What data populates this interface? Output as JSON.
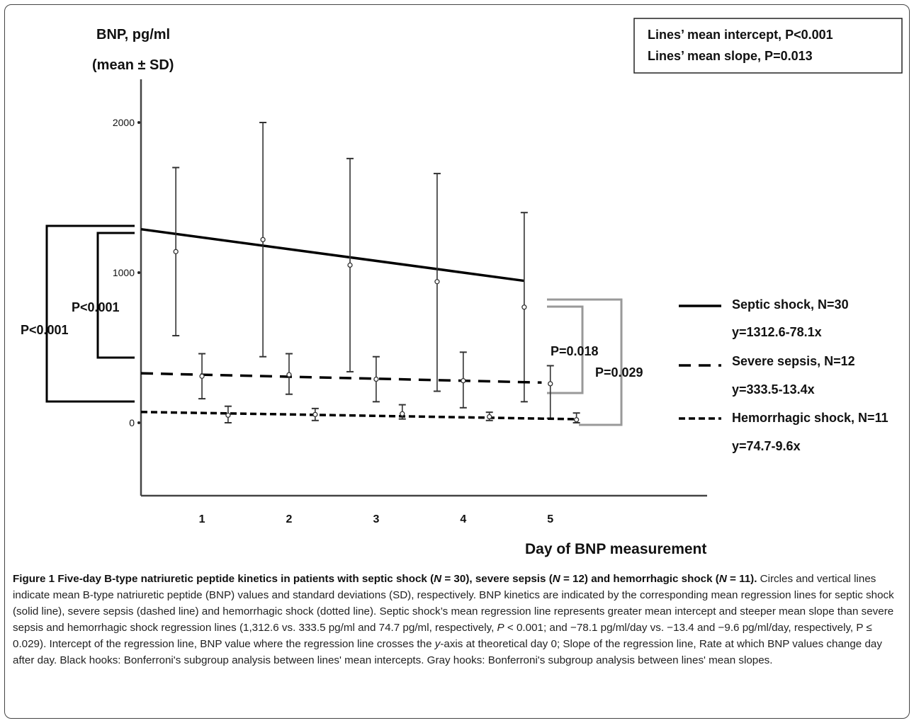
{
  "chart_data": {
    "type": "line",
    "ylabel_line1": "BNP, pg/ml",
    "ylabel_line2": "(mean ± SD)",
    "xlabel": "Day of BNP measurement",
    "x_ticks": [
      "1",
      "2",
      "3",
      "4",
      "5"
    ],
    "y_ticks": [
      "0",
      "1000",
      "2000"
    ],
    "ylim": [
      -500,
      2200
    ],
    "xlim": [
      0.3,
      6.8
    ],
    "stats_box": [
      "Lines’ mean intercept, P<0.001",
      "Lines’ mean slope, P=0.013"
    ],
    "series": [
      {
        "name": "Septic shock, N=30",
        "equation": "y=1312.6-78.1x",
        "line_style": "solid",
        "intercept": 1312.6,
        "slope": -78.1,
        "line_x_range": [
          0.3,
          4.7
        ],
        "points": [
          {
            "x": 0.7,
            "mean": 1140,
            "lower": 580,
            "upper": 1700
          },
          {
            "x": 1.7,
            "mean": 1220,
            "lower": 440,
            "upper": 2000
          },
          {
            "x": 2.7,
            "mean": 1050,
            "lower": 340,
            "upper": 1760
          },
          {
            "x": 3.7,
            "mean": 940,
            "lower": 210,
            "upper": 1660
          },
          {
            "x": 4.7,
            "mean": 770,
            "lower": 140,
            "upper": 1400
          }
        ]
      },
      {
        "name": "Severe sepsis, N=12",
        "equation": "y=333.5-13.4x",
        "line_style": "dashed",
        "intercept": 333.5,
        "slope": -13.4,
        "line_x_range": [
          0.3,
          4.9
        ],
        "points": [
          {
            "x": 1.0,
            "mean": 310,
            "lower": 160,
            "upper": 460
          },
          {
            "x": 2.0,
            "mean": 320,
            "lower": 190,
            "upper": 460
          },
          {
            "x": 3.0,
            "mean": 290,
            "lower": 140,
            "upper": 440
          },
          {
            "x": 4.0,
            "mean": 280,
            "lower": 100,
            "upper": 470
          },
          {
            "x": 5.0,
            "mean": 260,
            "lower": 30,
            "upper": 380
          }
        ]
      },
      {
        "name": "Hemorrhagic shock, N=11",
        "equation": "y=74.7-9.6x",
        "line_style": "dotted",
        "intercept": 74.7,
        "slope": -9.6,
        "line_x_range": [
          0.3,
          5.3
        ],
        "points": [
          {
            "x": 1.3,
            "mean": 50,
            "lower": 0,
            "upper": 110
          },
          {
            "x": 2.3,
            "mean": 55,
            "lower": 15,
            "upper": 95
          },
          {
            "x": 3.3,
            "mean": 60,
            "lower": 25,
            "upper": 120
          },
          {
            "x": 4.3,
            "mean": 40,
            "lower": 15,
            "upper": 70
          },
          {
            "x": 5.3,
            "mean": 20,
            "lower": 0,
            "upper": 65
          }
        ]
      }
    ],
    "comparisons": [
      {
        "label": "P<0.001",
        "type": "intercept",
        "between": [
          "Septic shock",
          "Hemorrhagic shock"
        ],
        "color": "#000000"
      },
      {
        "label": "P<0.001",
        "type": "intercept",
        "between": [
          "Septic shock",
          "Severe sepsis"
        ],
        "color": "#000000"
      },
      {
        "label": "P=0.018",
        "type": "slope",
        "between": [
          "Septic shock",
          "Severe sepsis"
        ],
        "color": "#999999"
      },
      {
        "label": "P=0.029",
        "type": "slope",
        "between": [
          "Septic shock",
          "Hemorrhagic shock"
        ],
        "color": "#999999"
      }
    ]
  },
  "caption": {
    "figure_label": "Figure 1",
    "title_part1": "Five-day B-type natriuretic peptide kinetics in patients with septic shock (",
    "n1": "N",
    "title_part2": " = 30), severe sepsis (",
    "n2": "N",
    "title_part3": " = 12) and hemorrhagic shock (",
    "n3": "N",
    "title_part4": " = 11).",
    "body_part1": " Circles and vertical lines indicate mean B-type natriuretic peptide (BNP) values and standard deviations (SD), respectively. BNP kinetics are indicated by the corresponding mean regression lines for septic shock (solid line), severe sepsis (dashed line) and hemorrhagic shock (dotted line). Septic shock’s mean regression line represents greater mean intercept and steeper mean slope than severe sepsis and hemorrhagic shock regression lines (1,312.6 vs. 333.5 pg/ml and 74.7 pg/ml, respectively, ",
    "p_italic": "P",
    "body_part2": " < 0.001; and −78.1 pg/ml/day vs. −13.4 and −9.6 pg/ml/day, respectively, P ≤ 0.029). Intercept of the regression line, BNP value where the regression line crosses the ",
    "y_italic": "y",
    "body_part3": "-axis at theoretical day 0; Slope of the regression line, Rate at which BNP values change day after day. Black hooks: Bonferroni's subgroup analysis between lines' mean intercepts. Gray hooks: Bonferroni's subgroup analysis between lines' mean slopes."
  }
}
